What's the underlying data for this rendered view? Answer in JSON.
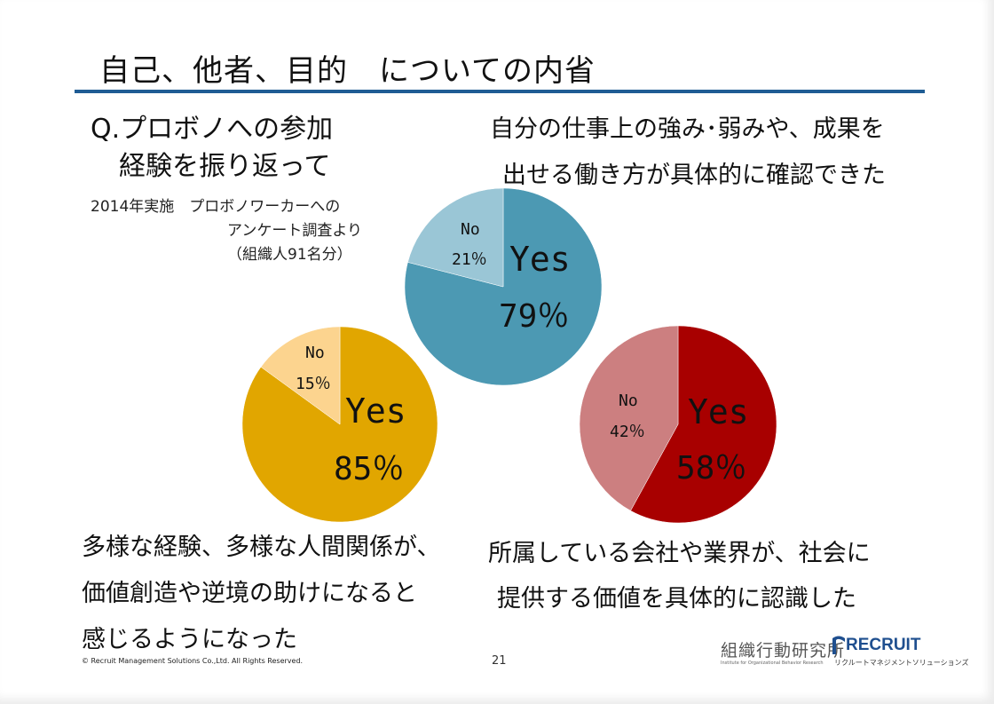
{
  "slide": {
    "title": "自己、他者、目的　についての内省",
    "question_line1": "Q.プロボノへの参加",
    "question_line2": "経験を振り返って",
    "note_line1": "2014年実施　プロボノワーカーへの",
    "note_line2": "アンケート調査より",
    "note_line3": "（組織人91名分）",
    "caption_blue_line1": "自分の仕事上の強み･弱みや、成果を",
    "caption_blue_line2": "出せる働き方が具体的に確認できた",
    "caption_yellow_line1": "多様な経験、多様な人間関係が、",
    "caption_yellow_line2": "価値創造や逆境の助けになると",
    "caption_yellow_line3": "感じるようになった",
    "caption_red_line1": "所属している会社や業界が、社会に",
    "caption_red_line2": "提供する価値を具体的に認識した",
    "copyright": "© Recruit Management Solutions Co.,Ltd. All Rights Reserved.",
    "page_number": "21",
    "logo_institute": "組織行動研究所",
    "logo_institute_sub": "Institute for Organizational Behavior Research",
    "logo_recruit": "RECRUIT",
    "logo_recruit_sub": "リクルートマネジメントソリューションズ"
  },
  "chart_data": [
    {
      "type": "pie",
      "id": "blue",
      "slices": [
        {
          "label": "Yes",
          "value": 79,
          "display": "79％",
          "color": "#4c99b3"
        },
        {
          "label": "No",
          "value": 21,
          "display": "21％",
          "color": "#9ac6d6"
        }
      ]
    },
    {
      "type": "pie",
      "id": "yellow",
      "slices": [
        {
          "label": "Yes",
          "value": 85,
          "display": "85％",
          "color": "#e1a600"
        },
        {
          "label": "No",
          "value": 15,
          "display": "15％",
          "color": "#fcd48f"
        }
      ]
    },
    {
      "type": "pie",
      "id": "red",
      "slices": [
        {
          "label": "Yes",
          "value": 58,
          "display": "58％",
          "color": "#a80000"
        },
        {
          "label": "No",
          "value": 42,
          "display": "42％",
          "color": "#cc7f80"
        }
      ]
    }
  ]
}
